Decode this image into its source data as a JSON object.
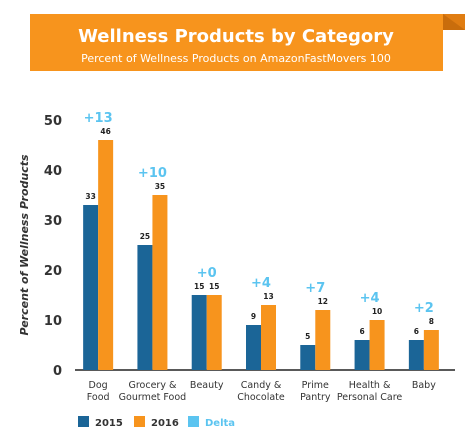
{
  "colors": {
    "banner": "#f7941d",
    "banner_fold": "#e07d12",
    "series_2015": "#1b6597",
    "series_2016": "#f7941d",
    "delta": "#5bc4f0",
    "axis_text": "#333333"
  },
  "legend_labels": [
    "2015",
    "2016",
    "Delta"
  ],
  "chart_data": {
    "type": "bar",
    "title": "Wellness Products by Category",
    "subtitle": "Percent of Wellness Products on AmazonFastMovers 100",
    "ylabel": "Percent of Wellness Products",
    "xlabel": "",
    "ylim": [
      0,
      50
    ],
    "yticks": [
      0,
      10,
      20,
      30,
      40,
      50
    ],
    "grid": false,
    "legend_position": "bottom",
    "categories": [
      [
        "Dog",
        "Food"
      ],
      [
        "Grocery &",
        "Gourmet Food"
      ],
      [
        "Beauty"
      ],
      [
        "Candy &",
        "Chocolate"
      ],
      [
        "Prime",
        "Pantry"
      ],
      [
        "Health &",
        "Personal Care"
      ],
      [
        "Baby"
      ]
    ],
    "series": [
      {
        "name": "2015",
        "values": [
          33,
          25,
          15,
          9,
          5,
          6,
          6
        ]
      },
      {
        "name": "2016",
        "values": [
          46,
          35,
          15,
          13,
          12,
          10,
          8
        ]
      }
    ],
    "delta_labels": [
      "+13",
      "+10",
      "+0",
      "+4",
      "+7",
      "+4",
      "+2"
    ]
  }
}
